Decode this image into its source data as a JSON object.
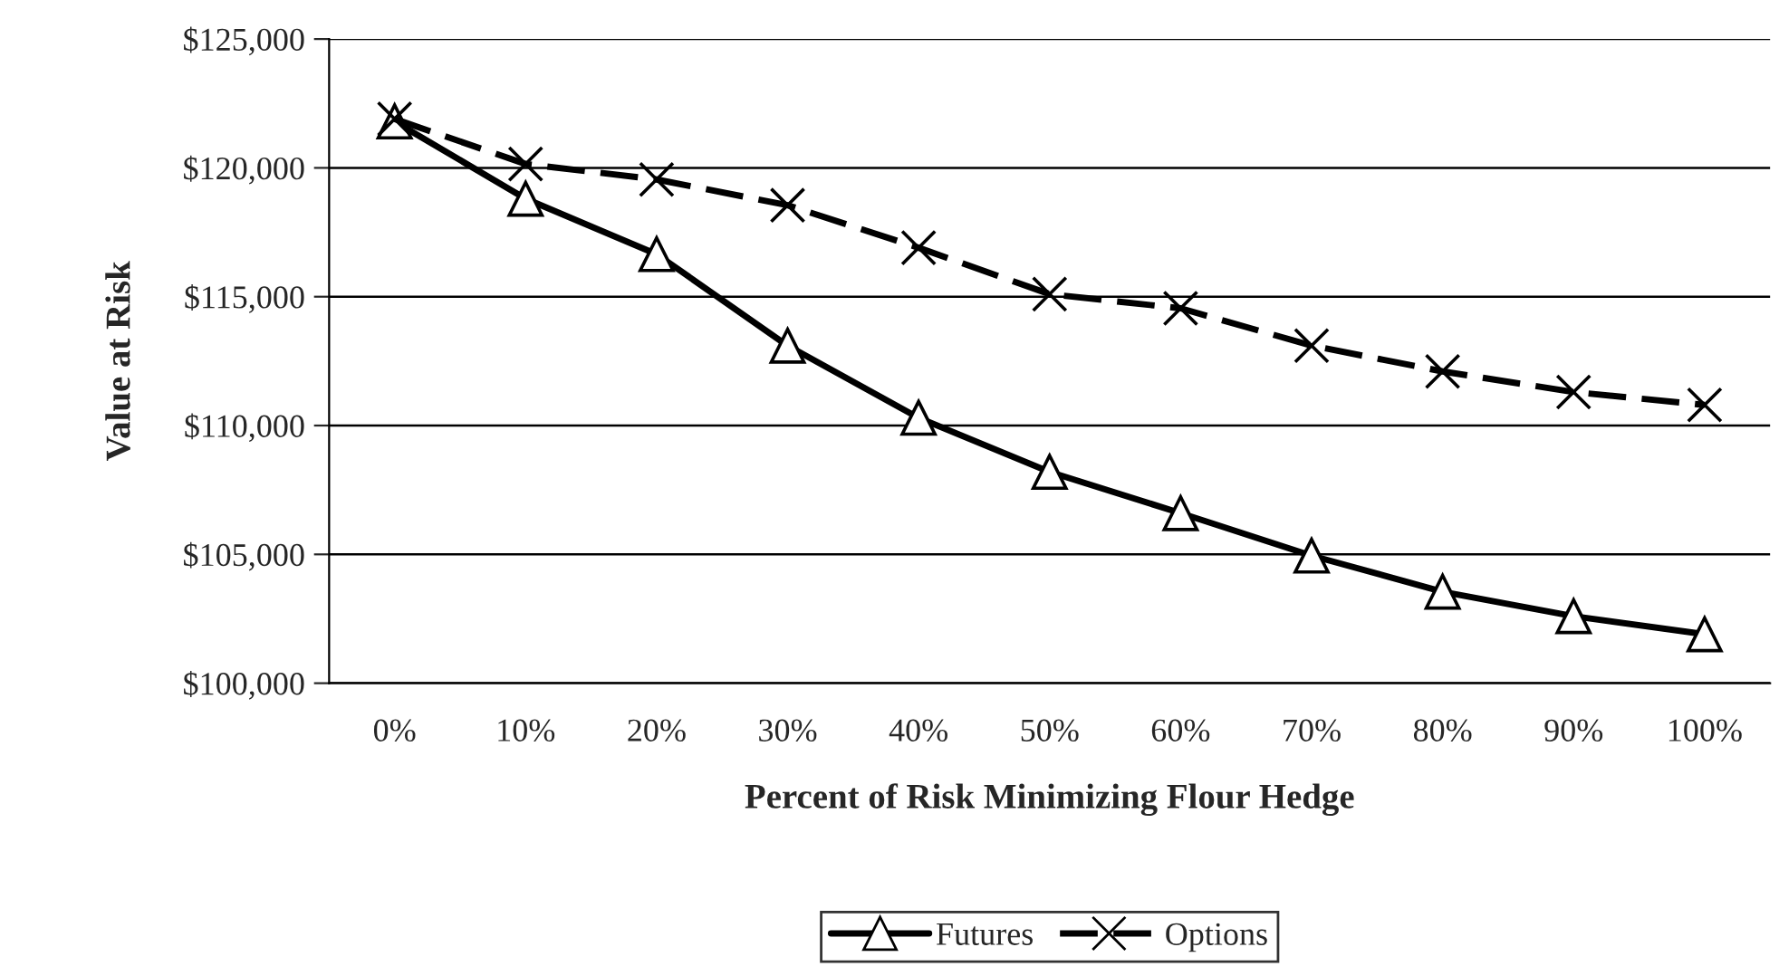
{
  "chart_data": {
    "type": "line",
    "xlabel": "Percent of Risk Minimizing Flour Hedge",
    "ylabel": "Value at Risk",
    "categories": [
      "0%",
      "10%",
      "20%",
      "30%",
      "40%",
      "50%",
      "60%",
      "70%",
      "80%",
      "90%",
      "100%"
    ],
    "series": [
      {
        "name": "Futures",
        "color": "#000000",
        "marker": "triangle",
        "line_style": "solid",
        "values": [
          121800,
          118800,
          116650,
          113100,
          110300,
          108200,
          106600,
          104950,
          103550,
          102600,
          101900
        ]
      },
      {
        "name": "Options",
        "color": "#000000",
        "marker": "cross",
        "line_style": "dashed",
        "values": [
          121900,
          120150,
          119550,
          118550,
          116900,
          115100,
          114550,
          113100,
          112100,
          111300,
          110800
        ]
      }
    ],
    "ylim": [
      100000,
      125000
    ],
    "yticks": [
      {
        "value": 100000,
        "label": "$100,000"
      },
      {
        "value": 105000,
        "label": "$105,000"
      },
      {
        "value": 110000,
        "label": "$110,000"
      },
      {
        "value": 115000,
        "label": "$115,000"
      },
      {
        "value": 120000,
        "label": "$120,000"
      },
      {
        "value": 125000,
        "label": "$125,000"
      }
    ],
    "grid": "y",
    "legend": "bottom"
  }
}
